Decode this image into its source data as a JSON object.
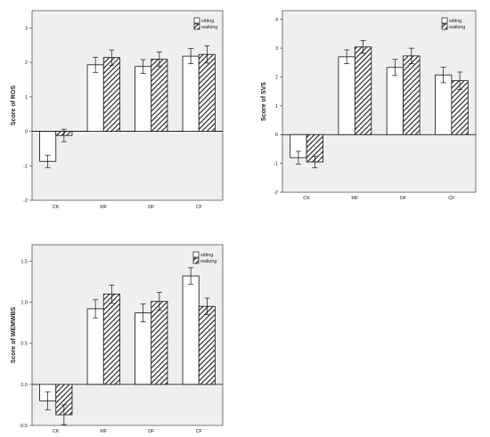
{
  "chart_data": [
    {
      "type": "bar",
      "title": "",
      "xlabel": "",
      "ylabel": "Score of ROS",
      "categories": [
        "CK",
        "MF",
        "DF",
        "CF"
      ],
      "ylim": [
        -2,
        3.5
      ],
      "yticks": [
        "-2",
        "-1",
        "0",
        "1",
        "2",
        "3"
      ],
      "ytick_values": [
        -2,
        -1,
        0,
        1,
        2,
        3
      ],
      "grid": false,
      "legend_position": "top-right",
      "series": [
        {
          "name": "sitting",
          "values": [
            -0.87,
            1.93,
            1.88,
            2.18
          ],
          "errors": [
            0.18,
            0.22,
            0.2,
            0.22
          ]
        },
        {
          "name": "walking",
          "values": [
            -0.12,
            2.14,
            2.09,
            2.23
          ],
          "errors": [
            0.18,
            0.22,
            0.21,
            0.25
          ]
        }
      ]
    },
    {
      "type": "bar",
      "title": "",
      "xlabel": "",
      "ylabel": "Score of SVS",
      "categories": [
        "CK",
        "MF",
        "DF",
        "CF"
      ],
      "ylim": [
        -2,
        4.3
      ],
      "yticks": [
        "-2",
        "-1",
        "0",
        "1",
        "2",
        "3",
        "4"
      ],
      "ytick_values": [
        -2,
        -1,
        0,
        1,
        2,
        3,
        4
      ],
      "grid": false,
      "legend_position": "top-right",
      "series": [
        {
          "name": "sitting",
          "values": [
            -0.8,
            2.7,
            2.33,
            2.07
          ],
          "errors": [
            0.22,
            0.24,
            0.28,
            0.27
          ]
        },
        {
          "name": "walking",
          "values": [
            -0.95,
            3.04,
            2.73,
            1.87
          ],
          "errors": [
            0.2,
            0.22,
            0.27,
            0.3
          ]
        }
      ]
    },
    {
      "type": "bar",
      "title": "",
      "xlabel": "",
      "ylabel": "Score of WEMWBS",
      "categories": [
        "CK",
        "MF",
        "DF",
        "CF"
      ],
      "ylim": [
        -0.5,
        1.7
      ],
      "yticks": [
        "-0.5",
        "0.0",
        "0.5",
        "1.0",
        "1.5"
      ],
      "ytick_values": [
        -0.5,
        0,
        0.5,
        1.0,
        1.5
      ],
      "grid": false,
      "legend_position": "top-right",
      "series": [
        {
          "name": "sitting",
          "values": [
            -0.2,
            0.92,
            0.87,
            1.32
          ],
          "errors": [
            0.11,
            0.11,
            0.11,
            0.1
          ]
        },
        {
          "name": "walking",
          "values": [
            -0.37,
            1.1,
            1.01,
            0.95
          ],
          "errors": [
            0.12,
            0.11,
            0.11,
            0.1
          ]
        }
      ]
    }
  ]
}
